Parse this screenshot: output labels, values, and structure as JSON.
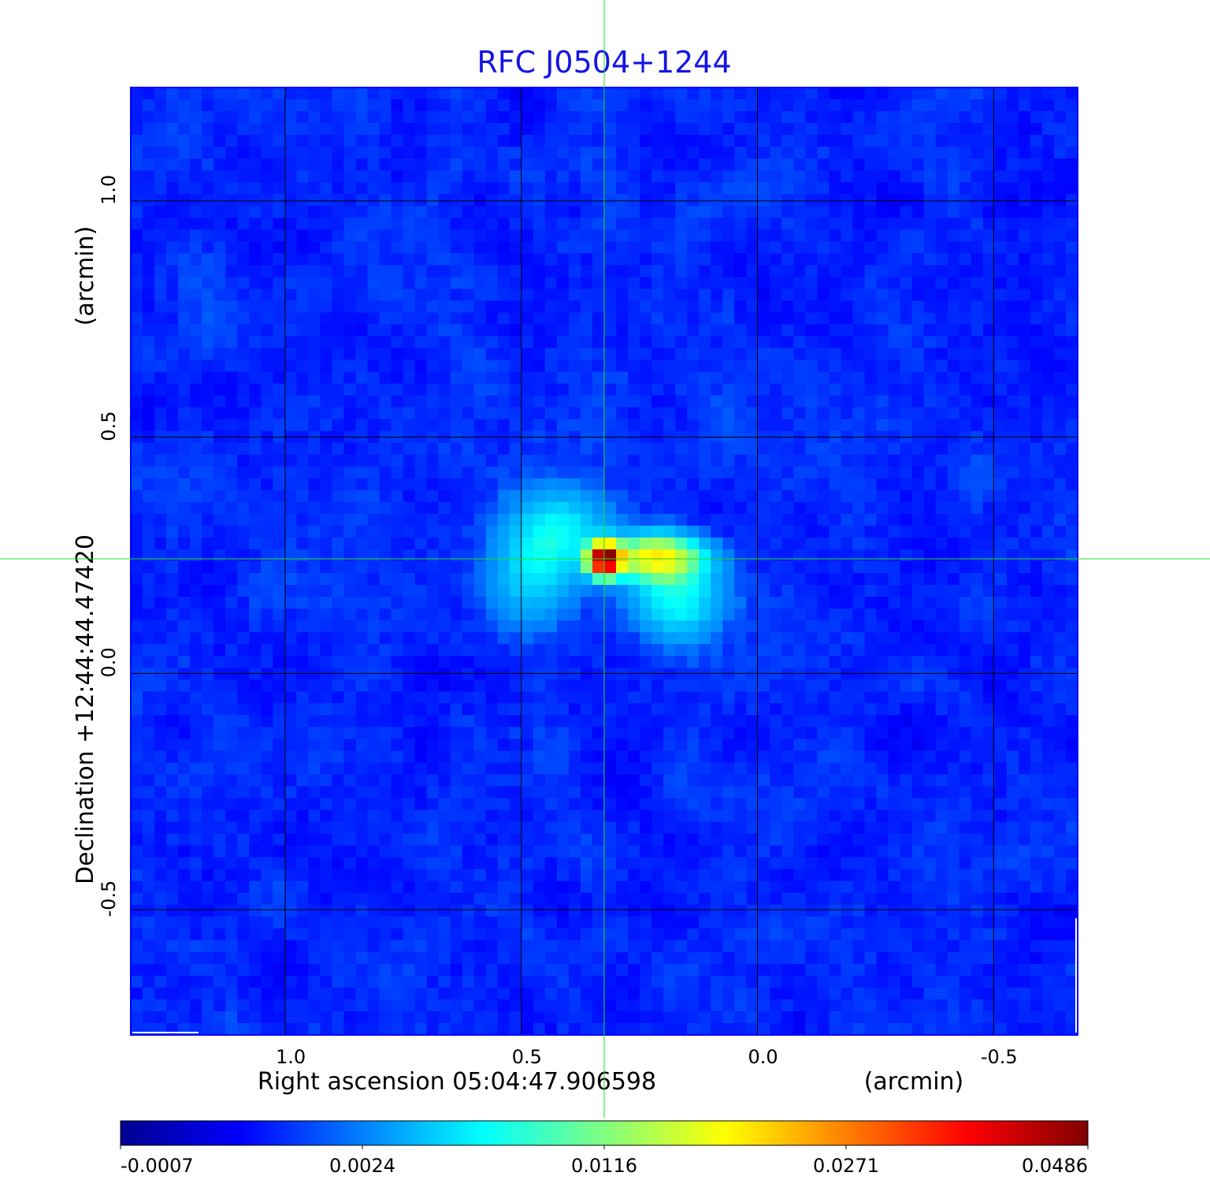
{
  "chart_data": {
    "type": "heatmap",
    "title": "RFC J0504+1244",
    "xlabel": "Right ascension  05:04:47.906598",
    "xunit": "(arcmin)",
    "ylabel": "Declination  +12:44:44.47420",
    "yunit": "(arcmin)",
    "xlim": [
      1.327,
      -0.678
    ],
    "ylim": [
      -0.765,
      1.24
    ],
    "xticks": [
      {
        "value": 1.0,
        "label": "1.0"
      },
      {
        "value": 0.5,
        "label": "0.5"
      },
      {
        "value": 0.0,
        "label": "0.0"
      },
      {
        "value": -0.5,
        "label": "-0.5"
      }
    ],
    "yticks": [
      {
        "value": 1.0,
        "label": "1.0"
      },
      {
        "value": 0.5,
        "label": "0.5"
      },
      {
        "value": 0.0,
        "label": "0.0"
      },
      {
        "value": -0.5,
        "label": "-0.5"
      }
    ],
    "grid": true,
    "crosshair": {
      "x": 0.323,
      "y": 0.242,
      "color": "#00dd00"
    },
    "colormap": "jet",
    "colorbar": {
      "ticks": [
        -0.0007,
        0.0024,
        0.0116,
        0.0271,
        0.0486
      ],
      "labels": [
        "-0.0007",
        "0.0024",
        "0.0116",
        "0.0271",
        "0.0486"
      ],
      "placement": "bottom"
    },
    "background_level": 0.0013,
    "components": [
      {
        "x": 0.323,
        "y": 0.242,
        "peak": 0.0486,
        "sx": 0.022,
        "sy": 0.022
      },
      {
        "x": 0.215,
        "y": 0.245,
        "peak": 0.018,
        "sx": 0.06,
        "sy": 0.03
      },
      {
        "x": 0.17,
        "y": 0.16,
        "peak": 0.006,
        "sx": 0.06,
        "sy": 0.06
      },
      {
        "x": 0.42,
        "y": 0.3,
        "peak": 0.0055,
        "sx": 0.07,
        "sy": 0.06
      },
      {
        "x": 0.48,
        "y": 0.2,
        "peak": 0.004,
        "sx": 0.06,
        "sy": 0.07
      }
    ],
    "colors": {
      "title": "#1414e6",
      "frame": "#0000ff"
    }
  }
}
